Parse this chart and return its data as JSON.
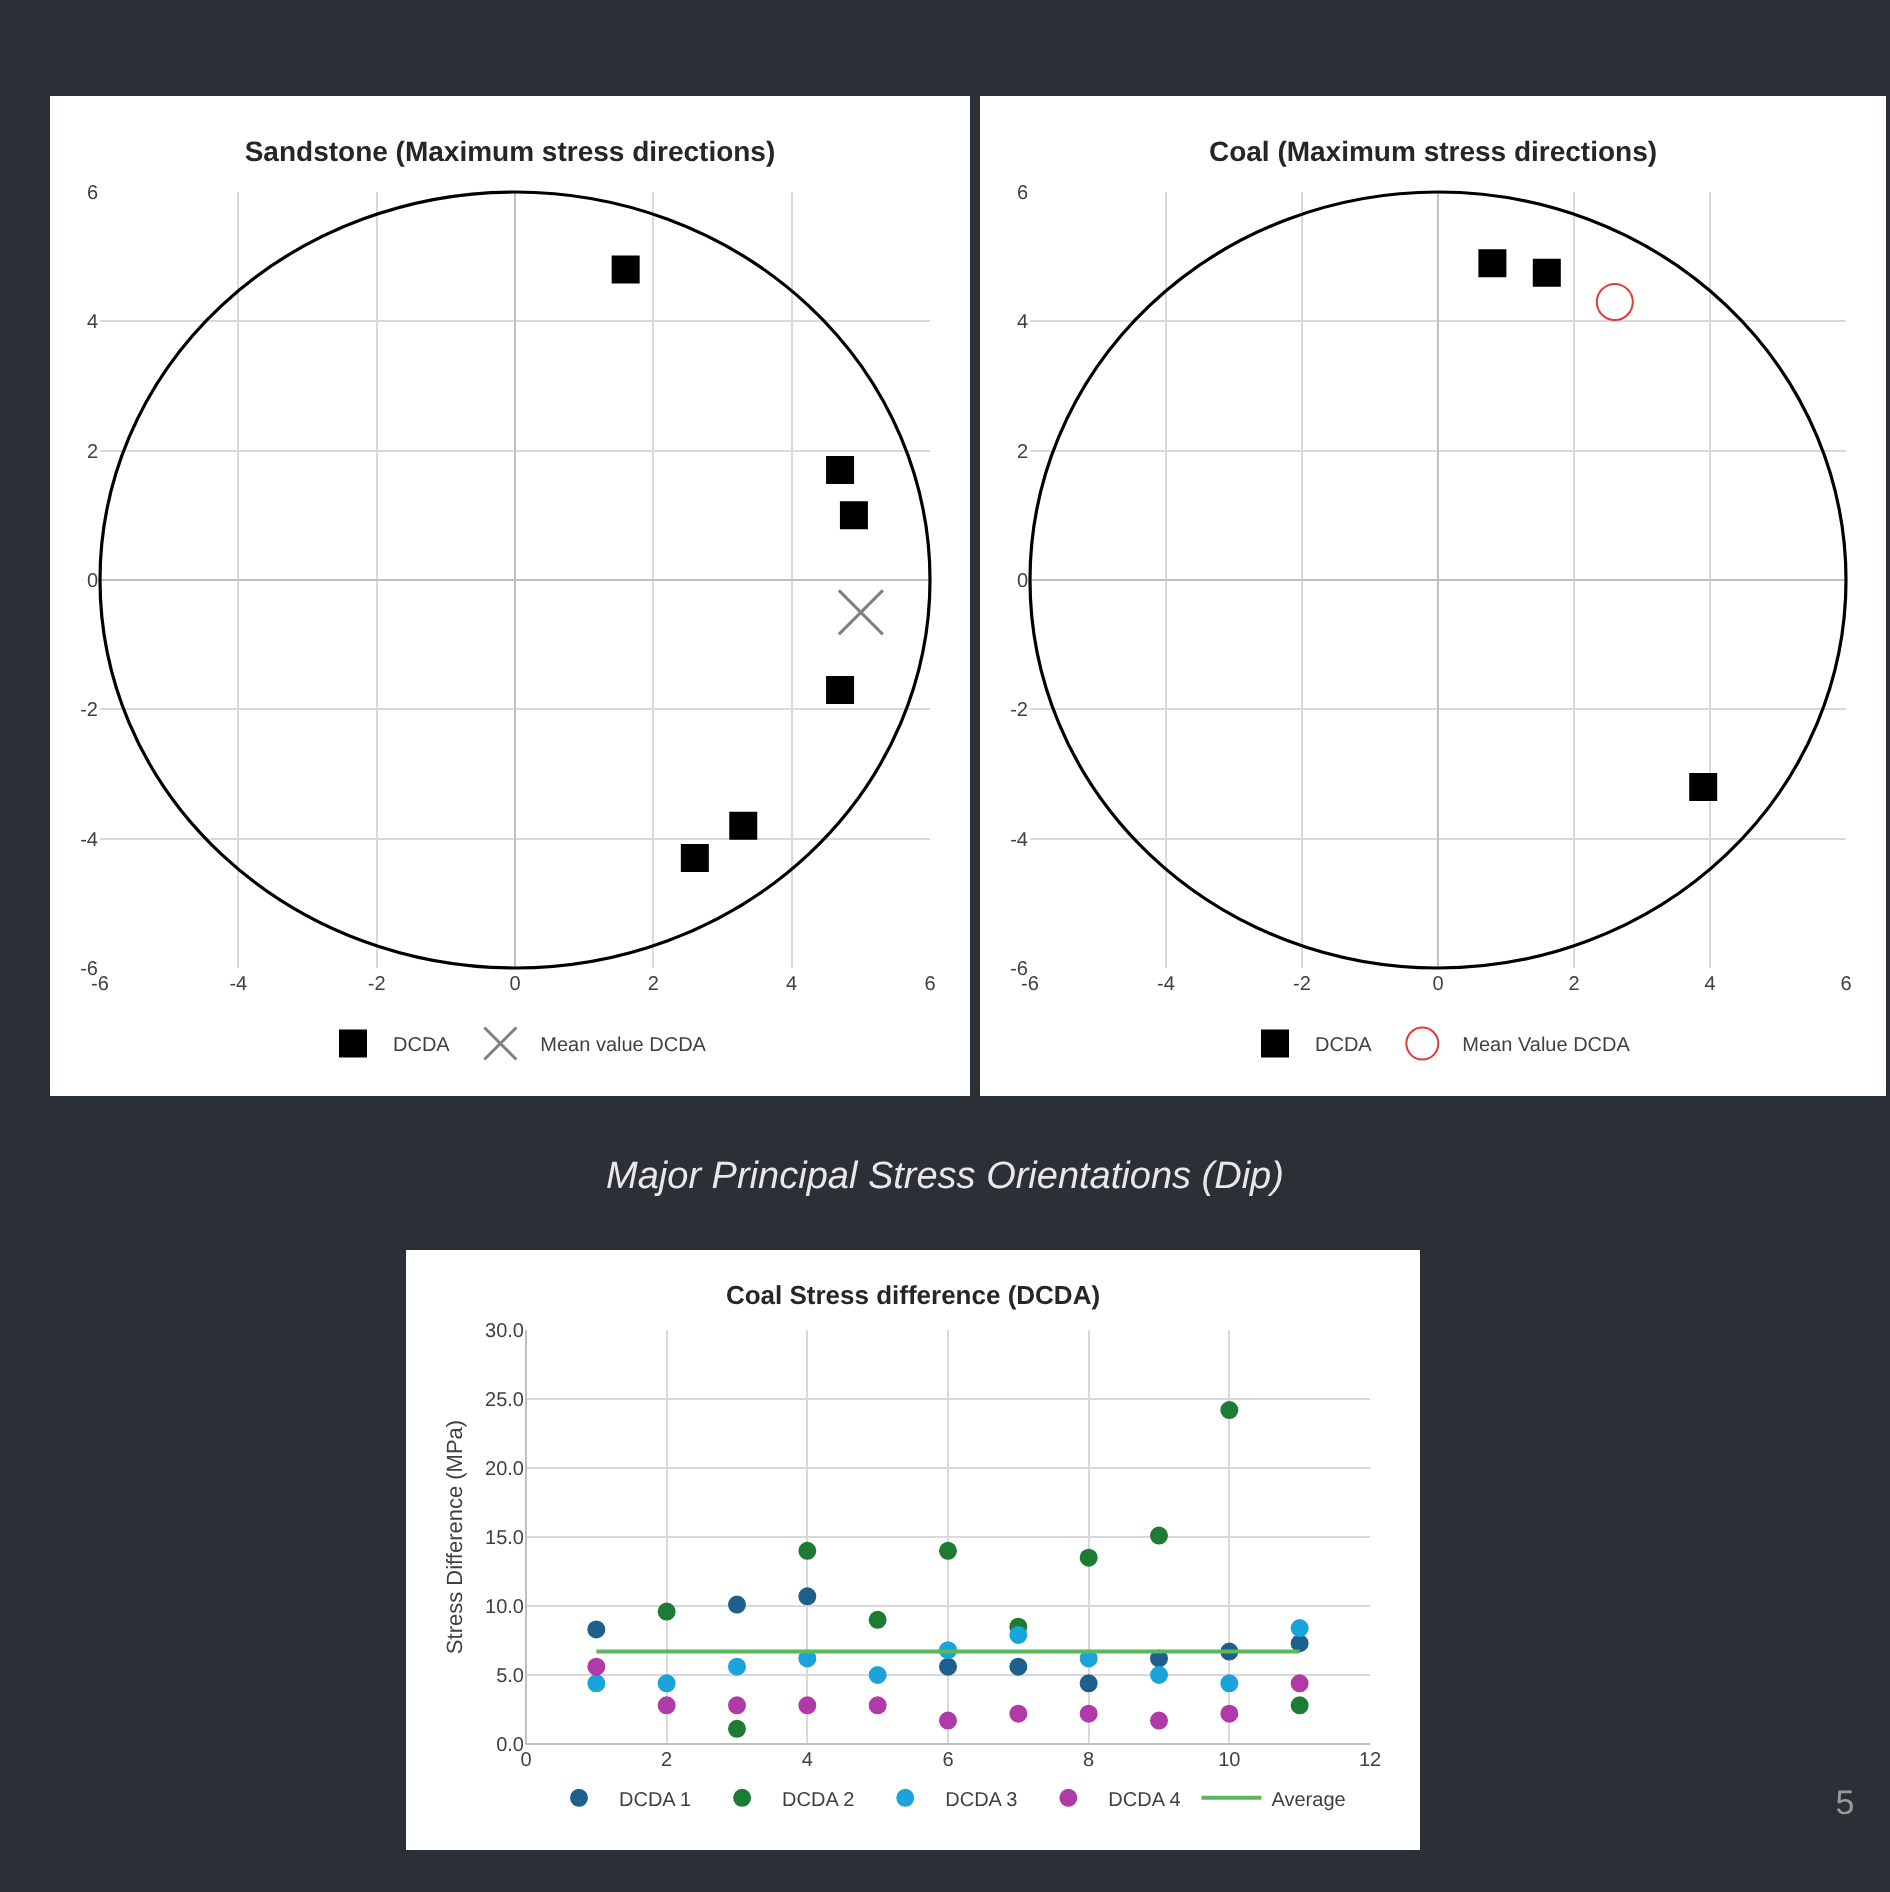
{
  "chart_data": [
    {
      "type": "scatter",
      "title": "Sandstone (Maximum stress directions)",
      "xlim": [
        -6,
        6
      ],
      "xticks": [
        -6,
        -4,
        -2,
        0,
        2,
        4,
        6
      ],
      "ylim": [
        -6,
        6
      ],
      "yticks": [
        -6,
        -4,
        -2,
        0,
        2,
        4,
        6
      ],
      "grid": true,
      "legend": "bottom",
      "series": [
        {
          "name": "DCDA",
          "color": "#000000",
          "marker": "square",
          "x": [
            1.6,
            4.7,
            4.9,
            4.7,
            3.3,
            2.6
          ],
          "values": [
            4.8,
            1.7,
            1.0,
            -1.7,
            -3.8,
            -4.3
          ]
        },
        {
          "name": "Mean value DCDA",
          "color": "#808080",
          "marker": "cross",
          "x": [
            5.0
          ],
          "values": [
            -0.5
          ]
        }
      ]
    },
    {
      "type": "scatter",
      "title": "Coal (Maximum stress directions)",
      "xlim": [
        -6,
        6
      ],
      "xticks": [
        -6,
        -4,
        -2,
        0,
        2,
        4,
        6
      ],
      "ylim": [
        -6,
        6
      ],
      "yticks": [
        -6,
        -4,
        -2,
        0,
        2,
        4,
        6
      ],
      "grid": true,
      "legend": "bottom",
      "annotations": [
        "Major Principal Stress Orientations (Dip)"
      ],
      "series": [
        {
          "name": "DCDA",
          "color": "#000000",
          "marker": "square",
          "x": [
            0.8,
            1.6,
            3.9
          ],
          "values": [
            4.9,
            4.75,
            -3.2
          ]
        },
        {
          "name": "Mean Value DCDA",
          "color": "#e03c3c",
          "marker": "circle",
          "x": [
            2.6
          ],
          "values": [
            4.3
          ]
        }
      ]
    },
    {
      "type": "scatter",
      "title": "Coal Stress difference (DCDA)",
      "ylabel": "Stress Difference (MPa)",
      "xlim": [
        0,
        12
      ],
      "xticks": [
        0,
        2,
        4,
        6,
        8,
        10,
        12
      ],
      "ylim": [
        0,
        30
      ],
      "yticks": [
        {
          "value": 0,
          "label": "0.0"
        },
        {
          "value": 5,
          "label": "5.0"
        },
        {
          "value": 10,
          "label": "10.0"
        },
        {
          "value": 15,
          "label": "15.0"
        },
        {
          "value": 20,
          "label": "20.0"
        },
        {
          "value": 25,
          "label": "25.0"
        },
        {
          "value": 30,
          "label": "30.0"
        }
      ],
      "grid": true,
      "legend": "bottom",
      "marker": "circle",
      "annotations": [
        "5"
      ],
      "x": [
        1,
        2,
        3,
        4,
        5,
        6,
        7,
        8,
        9,
        10,
        11
      ],
      "series": [
        {
          "name": "DCDA 1",
          "color": "#1f5f8b",
          "values": [
            8.3,
            null,
            10.1,
            10.7,
            null,
            5.6,
            5.6,
            4.4,
            6.2,
            6.7,
            7.3
          ]
        },
        {
          "name": "DCDA 2",
          "color": "#1e7b34",
          "values": [
            null,
            9.6,
            1.1,
            14.0,
            9.0,
            14.0,
            8.5,
            13.5,
            15.1,
            24.2,
            2.8
          ]
        },
        {
          "name": "DCDA 3",
          "color": "#1ba3dc",
          "values": [
            4.4,
            4.4,
            5.6,
            6.2,
            5.0,
            6.8,
            7.9,
            6.2,
            5.0,
            4.4,
            8.4
          ]
        },
        {
          "name": "DCDA 4",
          "color": "#b03aa8",
          "values": [
            5.6,
            2.8,
            2.8,
            2.8,
            2.8,
            1.7,
            2.2,
            2.2,
            1.7,
            2.2,
            4.4
          ]
        },
        {
          "name": "Average",
          "type": "line",
          "color": "#5cb85c",
          "marker": "none",
          "x": [
            1,
            11
          ],
          "values": [
            6.7,
            6.7
          ]
        }
      ]
    }
  ]
}
